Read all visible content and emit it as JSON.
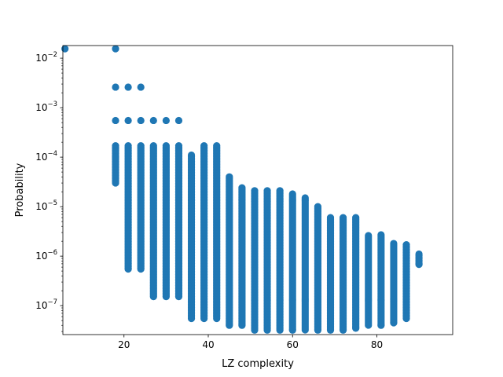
{
  "chart_data": {
    "type": "scatter",
    "title": "",
    "xlabel": "LZ complexity",
    "ylabel": "Probability",
    "xlim": [
      5.5,
      98
    ],
    "ylim": [
      2.6e-08,
      0.018
    ],
    "yscale": "log",
    "x_ticks": [
      20,
      40,
      60,
      80
    ],
    "y_ticks": [
      {
        "value": 1e-07,
        "base": "10",
        "exp": "−7"
      },
      {
        "value": 1e-06,
        "base": "10",
        "exp": "−6"
      },
      {
        "value": 1e-05,
        "base": "10",
        "exp": "−5"
      },
      {
        "value": 0.0001,
        "base": "10",
        "exp": "−4"
      },
      {
        "value": 0.001,
        "base": "10",
        "exp": "−3"
      },
      {
        "value": 0.01,
        "base": "10",
        "exp": "−2"
      }
    ],
    "grid": false,
    "marker_color": "#1f77b4",
    "columns": [
      {
        "x": 6,
        "y_min": 0.0155,
        "y_max": 0.0155,
        "isolated": []
      },
      {
        "x": 18,
        "y_min": 3e-05,
        "y_max": 0.00017,
        "isolated": [
          0.0155,
          0.0026,
          0.00055,
          0.0001,
          3e-05,
          3.2e-05
        ]
      },
      {
        "x": 21,
        "y_min": 5.5e-07,
        "y_max": 0.00017,
        "isolated": [
          0.0026,
          0.00055,
          5.5e-07
        ]
      },
      {
        "x": 24,
        "y_min": 5.5e-07,
        "y_max": 0.00017,
        "isolated": [
          0.0026,
          0.00055
        ]
      },
      {
        "x": 27,
        "y_min": 1.5e-07,
        "y_max": 0.00017,
        "isolated": [
          0.00055
        ]
      },
      {
        "x": 30,
        "y_min": 1.5e-07,
        "y_max": 0.00017,
        "isolated": [
          0.00055
        ]
      },
      {
        "x": 33,
        "y_min": 1.5e-07,
        "y_max": 0.00017,
        "isolated": [
          0.00055
        ]
      },
      {
        "x": 36,
        "y_min": 5.5e-08,
        "y_max": 0.00011,
        "isolated": []
      },
      {
        "x": 39,
        "y_min": 5.5e-08,
        "y_max": 0.00017,
        "isolated": []
      },
      {
        "x": 42,
        "y_min": 5.5e-08,
        "y_max": 0.00017,
        "isolated": []
      },
      {
        "x": 45,
        "y_min": 4e-08,
        "y_max": 4e-05,
        "isolated": []
      },
      {
        "x": 48,
        "y_min": 4e-08,
        "y_max": 2.4e-05,
        "isolated": []
      },
      {
        "x": 51,
        "y_min": 3.2e-08,
        "y_max": 2.1e-05,
        "isolated": []
      },
      {
        "x": 54,
        "y_min": 3.2e-08,
        "y_max": 2.1e-05,
        "isolated": []
      },
      {
        "x": 57,
        "y_min": 3.2e-08,
        "y_max": 2.1e-05,
        "isolated": []
      },
      {
        "x": 60,
        "y_min": 3.2e-08,
        "y_max": 1.8e-05,
        "isolated": []
      },
      {
        "x": 63,
        "y_min": 3.2e-08,
        "y_max": 1.5e-05,
        "isolated": []
      },
      {
        "x": 66,
        "y_min": 3.2e-08,
        "y_max": 1e-05,
        "isolated": []
      },
      {
        "x": 69,
        "y_min": 3.2e-08,
        "y_max": 6e-06,
        "isolated": []
      },
      {
        "x": 72,
        "y_min": 3.2e-08,
        "y_max": 6e-06,
        "isolated": []
      },
      {
        "x": 75,
        "y_min": 3.5e-08,
        "y_max": 6e-06,
        "isolated": []
      },
      {
        "x": 78,
        "y_min": 4e-08,
        "y_max": 2.6e-06,
        "isolated": []
      },
      {
        "x": 81,
        "y_min": 4e-08,
        "y_max": 2.7e-06,
        "isolated": []
      },
      {
        "x": 84,
        "y_min": 4.5e-08,
        "y_max": 1.8e-06,
        "isolated": []
      },
      {
        "x": 87,
        "y_min": 5.5e-08,
        "y_max": 1.7e-06,
        "isolated": [
          5.5e-08,
          6.8e-08
        ]
      },
      {
        "x": 90,
        "y_min": 6.8e-07,
        "y_max": 1.1e-06,
        "isolated": [
          6.8e-07,
          1.1e-06
        ]
      }
    ]
  }
}
